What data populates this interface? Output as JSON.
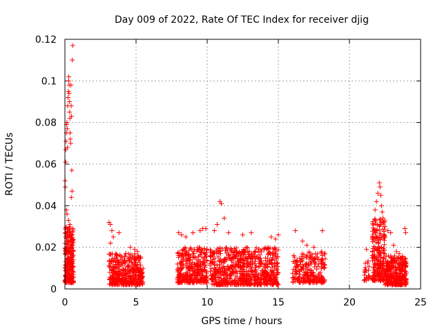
{
  "chart_data": {
    "type": "scatter",
    "title": "Day 009 of 2022, Rate Of TEC Index for receiver djig",
    "xlabel": "GPS time / hours",
    "ylabel": "ROTI / TECUs",
    "xlim": [
      0,
      25
    ],
    "ylim": [
      0,
      0.12
    ],
    "xticks": [
      0,
      5,
      10,
      15,
      20,
      25
    ],
    "xtick_labels": [
      "0",
      "5",
      "10",
      "15",
      "20",
      "25"
    ],
    "yticks": [
      0,
      0.02,
      0.04,
      0.06,
      0.08,
      0.1,
      0.12
    ],
    "ytick_labels": [
      "0",
      "0.02",
      "0.04",
      "0.06",
      "0.08",
      "0.1",
      "0.12"
    ],
    "grid": true,
    "marker": "+",
    "color": "#ff0000",
    "clusters": [
      {
        "x_start": 0.0,
        "x_end": 0.6,
        "y_min": 0.003,
        "y_max": 0.03,
        "count": 260
      },
      {
        "x_start": 3.1,
        "x_end": 5.5,
        "y_min": 0.002,
        "y_max": 0.017,
        "count": 380
      },
      {
        "x_start": 7.9,
        "x_end": 10.0,
        "y_min": 0.003,
        "y_max": 0.02,
        "count": 320
      },
      {
        "x_start": 10.2,
        "x_end": 15.0,
        "y_min": 0.002,
        "y_max": 0.02,
        "count": 700
      },
      {
        "x_start": 16.0,
        "x_end": 18.3,
        "y_min": 0.003,
        "y_max": 0.018,
        "count": 230
      },
      {
        "x_start": 21.0,
        "x_end": 21.4,
        "y_min": 0.004,
        "y_max": 0.014,
        "count": 25
      },
      {
        "x_start": 21.6,
        "x_end": 22.5,
        "y_min": 0.004,
        "y_max": 0.035,
        "count": 220
      },
      {
        "x_start": 22.5,
        "x_end": 24.0,
        "y_min": 0.002,
        "y_max": 0.016,
        "count": 320
      }
    ],
    "points": [
      [
        0.02,
        0.052
      ],
      [
        0.03,
        0.049
      ],
      [
        0.05,
        0.061
      ],
      [
        0.06,
        0.067
      ],
      [
        0.08,
        0.071
      ],
      [
        0.1,
        0.075
      ],
      [
        0.12,
        0.079
      ],
      [
        0.14,
        0.08
      ],
      [
        0.16,
        0.077
      ],
      [
        0.18,
        0.068
      ],
      [
        0.2,
        0.088
      ],
      [
        0.22,
        0.092
      ],
      [
        0.24,
        0.095
      ],
      [
        0.26,
        0.1
      ],
      [
        0.27,
        0.102
      ],
      [
        0.29,
        0.094
      ],
      [
        0.3,
        0.098
      ],
      [
        0.32,
        0.09
      ],
      [
        0.33,
        0.085
      ],
      [
        0.35,
        0.082
      ],
      [
        0.36,
        0.075
      ],
      [
        0.38,
        0.072
      ],
      [
        0.4,
        0.07
      ],
      [
        0.42,
        0.098
      ],
      [
        0.44,
        0.088
      ],
      [
        0.46,
        0.083
      ],
      [
        0.48,
        0.057
      ],
      [
        0.5,
        0.047
      ],
      [
        0.52,
        0.11
      ],
      [
        0.55,
        0.117
      ],
      [
        0.1,
        0.038
      ],
      [
        0.15,
        0.036
      ],
      [
        0.25,
        0.033
      ],
      [
        0.35,
        0.031
      ],
      [
        0.45,
        0.044
      ],
      [
        3.1,
        0.032
      ],
      [
        3.2,
        0.031
      ],
      [
        3.3,
        0.028
      ],
      [
        3.4,
        0.025
      ],
      [
        3.2,
        0.022
      ],
      [
        3.8,
        0.027
      ],
      [
        4.6,
        0.02
      ],
      [
        4.9,
        0.019
      ],
      [
        5.1,
        0.018
      ],
      [
        8.0,
        0.027
      ],
      [
        8.2,
        0.026
      ],
      [
        8.5,
        0.025
      ],
      [
        9.0,
        0.027
      ],
      [
        9.5,
        0.028
      ],
      [
        9.7,
        0.029
      ],
      [
        9.9,
        0.029
      ],
      [
        10.5,
        0.028
      ],
      [
        10.7,
        0.031
      ],
      [
        10.9,
        0.042
      ],
      [
        11.0,
        0.041
      ],
      [
        11.2,
        0.034
      ],
      [
        11.5,
        0.027
      ],
      [
        12.5,
        0.026
      ],
      [
        13.1,
        0.027
      ],
      [
        14.5,
        0.025
      ],
      [
        14.8,
        0.024
      ],
      [
        15.0,
        0.026
      ],
      [
        16.2,
        0.028
      ],
      [
        16.7,
        0.023
      ],
      [
        17.0,
        0.021
      ],
      [
        17.5,
        0.02
      ],
      [
        18.1,
        0.028
      ],
      [
        21.2,
        0.019
      ],
      [
        21.6,
        0.024
      ],
      [
        21.8,
        0.038
      ],
      [
        21.9,
        0.042
      ],
      [
        22.0,
        0.046
      ],
      [
        22.1,
        0.051
      ],
      [
        22.15,
        0.049
      ],
      [
        22.2,
        0.045
      ],
      [
        22.25,
        0.04
      ],
      [
        22.3,
        0.037
      ],
      [
        22.4,
        0.032
      ],
      [
        22.5,
        0.03
      ],
      [
        22.7,
        0.028
      ],
      [
        22.9,
        0.027
      ],
      [
        23.1,
        0.021
      ],
      [
        23.3,
        0.018
      ],
      [
        23.5,
        0.017
      ],
      [
        23.9,
        0.029
      ],
      [
        23.95,
        0.027
      ]
    ]
  }
}
